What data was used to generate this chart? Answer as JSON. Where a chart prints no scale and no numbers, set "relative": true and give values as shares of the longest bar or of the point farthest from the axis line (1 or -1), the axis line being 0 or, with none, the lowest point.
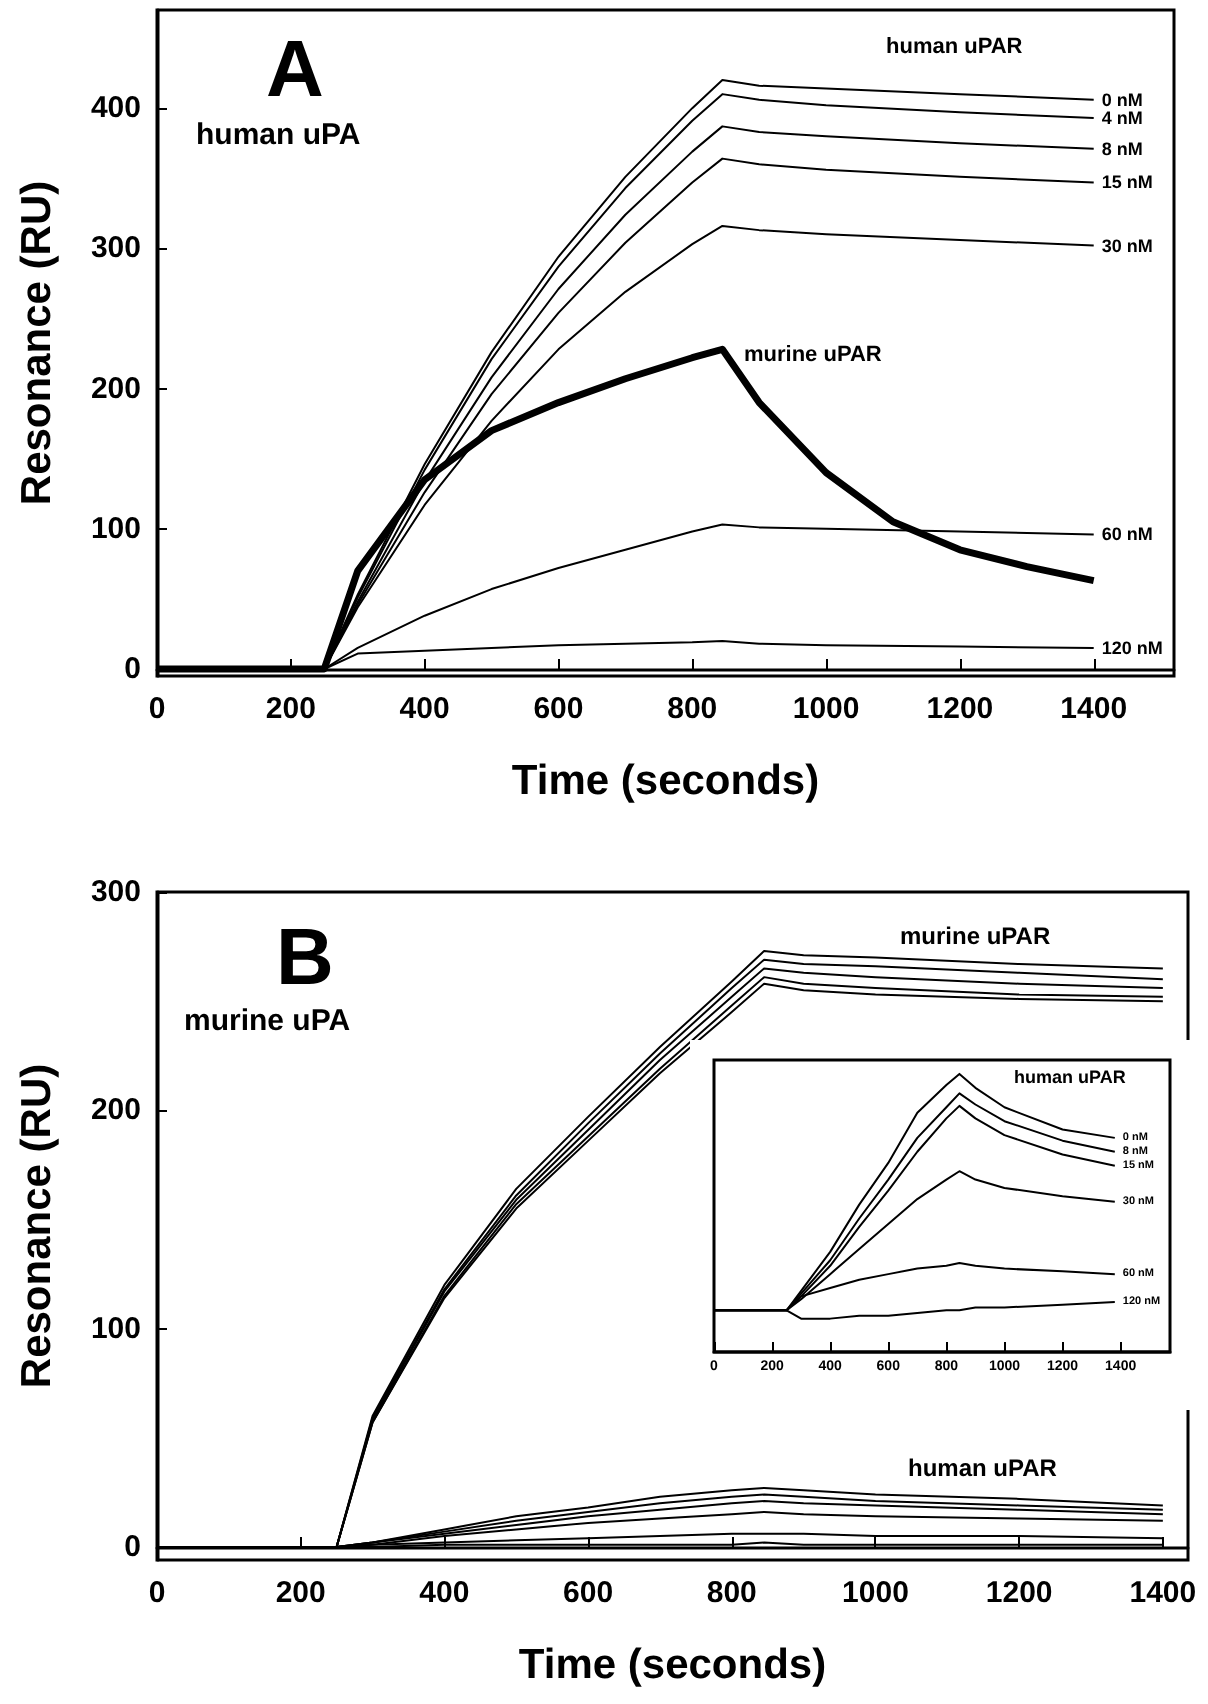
{
  "chart_data": [
    {
      "type": "line",
      "title": "A",
      "xlabel": "Time (seconds)",
      "ylabel": "Resonance (RU)",
      "xlim": [
        0,
        1520
      ],
      "ylim": [
        -5,
        470
      ],
      "xticks": [
        0,
        200,
        400,
        600,
        800,
        1000,
        1200,
        1400
      ],
      "yticks": [
        0,
        100,
        200,
        300,
        400
      ],
      "annotations": [
        "human uPA",
        "human uPAR",
        "murine uPAR"
      ],
      "x": [
        0,
        250,
        300,
        400,
        500,
        600,
        700,
        800,
        845,
        900,
        1000,
        1200,
        1400
      ],
      "series": [
        {
          "name": "0 nM",
          "color": "#000000",
          "values": [
            0,
            0,
            53,
            146,
            226,
            294,
            351,
            400,
            420,
            416,
            414,
            410,
            406
          ]
        },
        {
          "name": "4 nM",
          "color": "#000000",
          "values": [
            0,
            0,
            51,
            142,
            221,
            287,
            343,
            391,
            410,
            406,
            402,
            397,
            393
          ]
        },
        {
          "name": "8 nM",
          "color": "#000000",
          "values": [
            0,
            0,
            48,
            134,
            208,
            271,
            324,
            369,
            387,
            383,
            380,
            375,
            371
          ]
        },
        {
          "name": "15 nM",
          "color": "#000000",
          "values": [
            0,
            0,
            46,
            126,
            196,
            254,
            304,
            347,
            364,
            360,
            356,
            351,
            347
          ]
        },
        {
          "name": "30 nM",
          "color": "#000000",
          "values": [
            0,
            0,
            44,
            117,
            177,
            228,
            269,
            303,
            316,
            313,
            310,
            306,
            302
          ]
        },
        {
          "name": "60 nM",
          "color": "#000000",
          "values": [
            0,
            0,
            15,
            38,
            57,
            72,
            85,
            98,
            103,
            101,
            100,
            98,
            96
          ]
        },
        {
          "name": "120 nM",
          "color": "#000000",
          "values": [
            0,
            0,
            11,
            13,
            15,
            17,
            18,
            19,
            20,
            18,
            17,
            16,
            15
          ]
        },
        {
          "color": "#000000",
          "x": [
            0,
            250,
            300,
            400,
            500,
            600,
            700,
            800,
            845,
            900,
            1000,
            1100,
            1200,
            1300,
            1400
          ],
          "values": [
            0,
            0,
            70,
            135,
            170,
            190,
            207,
            222,
            228,
            190,
            140,
            105,
            85,
            73,
            63
          ]
        }
      ]
    },
    {
      "type": "line",
      "title": "B",
      "xlabel": "Time (seconds)",
      "ylabel": "Resonance (RU)",
      "xlim": [
        0,
        1435
      ],
      "ylim": [
        -6,
        300
      ],
      "xticks": [
        0,
        200,
        400,
        600,
        800,
        1000,
        1200,
        1400
      ],
      "yticks": [
        0,
        100,
        200,
        300
      ],
      "annotations": [
        "murine uPA",
        "murine uPAR",
        "human uPAR"
      ],
      "x": [
        0,
        250,
        300,
        400,
        500,
        600,
        700,
        800,
        845,
        900,
        1000,
        1200,
        1400
      ],
      "series": [
        {
          "color": "#000000",
          "values": [
            0,
            0,
            60,
            120,
            164,
            197,
            229,
            259,
            273,
            271,
            270,
            267,
            265
          ]
        },
        {
          "color": "#000000",
          "values": [
            0,
            0,
            59,
            118,
            161,
            194,
            226,
            256,
            269,
            267,
            266,
            263,
            260
          ]
        },
        {
          "color": "#000000",
          "values": [
            0,
            0,
            58,
            117,
            159,
            191,
            223,
            252,
            265,
            263,
            261,
            258,
            256
          ]
        },
        {
          "color": "#000000",
          "values": [
            0,
            0,
            57,
            115,
            157,
            188,
            219,
            248,
            261,
            258,
            256,
            253,
            252
          ]
        },
        {
          "color": "#000000",
          "values": [
            0,
            0,
            57,
            114,
            155,
            186,
            217,
            245,
            258,
            255,
            253,
            251,
            250
          ]
        },
        {
          "color": "#000000",
          "values": [
            0,
            0,
            2,
            8,
            14,
            18,
            23,
            26,
            27,
            26,
            24,
            22,
            19
          ]
        },
        {
          "color": "#000000",
          "values": [
            0,
            0,
            2,
            7,
            12,
            16,
            20,
            23,
            24,
            23,
            21,
            19,
            17
          ]
        },
        {
          "color": "#000000",
          "values": [
            0,
            0,
            2,
            6,
            10,
            14,
            17,
            20,
            21,
            20,
            19,
            17,
            15
          ]
        },
        {
          "color": "#000000",
          "values": [
            0,
            0,
            1,
            5,
            8,
            11,
            13,
            15,
            16,
            15,
            14,
            13,
            12
          ]
        },
        {
          "color": "#000000",
          "values": [
            0,
            0,
            1,
            2,
            3,
            4,
            5,
            6,
            6,
            6,
            5,
            5,
            4
          ]
        },
        {
          "color": "#000000",
          "values": [
            0,
            0,
            0,
            1,
            1,
            1,
            1,
            1,
            2,
            1,
            1,
            1,
            1
          ]
        }
      ]
    },
    {
      "type": "line",
      "relative": true,
      "tick_labels": "x",
      "xlim": [
        0,
        1570
      ],
      "xticks": [
        0,
        200,
        400,
        600,
        800,
        1000,
        1200,
        1400
      ],
      "annotations": [
        "human uPAR"
      ],
      "x": [
        0,
        250,
        300,
        400,
        500,
        600,
        700,
        800,
        845,
        900,
        1000,
        1200,
        1380
      ],
      "series": [
        {
          "name": "0 nM",
          "color": "#000000",
          "values": [
            0.15,
            0.15,
            0.22,
            0.36,
            0.53,
            0.68,
            0.86,
            0.96,
            1.0,
            0.95,
            0.88,
            0.8,
            0.77
          ]
        },
        {
          "name": "8 nM",
          "color": "#000000",
          "values": [
            0.15,
            0.15,
            0.21,
            0.33,
            0.48,
            0.62,
            0.77,
            0.88,
            0.93,
            0.89,
            0.83,
            0.76,
            0.72
          ]
        },
        {
          "name": "15 nM",
          "color": "#000000",
          "values": [
            0.15,
            0.15,
            0.2,
            0.31,
            0.45,
            0.58,
            0.72,
            0.84,
            0.885,
            0.84,
            0.78,
            0.71,
            0.67
          ]
        },
        {
          "name": "30 nM",
          "color": "#000000",
          "values": [
            0.15,
            0.15,
            0.19,
            0.28,
            0.37,
            0.46,
            0.55,
            0.62,
            0.65,
            0.62,
            0.59,
            0.56,
            0.54
          ]
        },
        {
          "name": "60 nM",
          "color": "#000000",
          "values": [
            0.15,
            0.15,
            0.2,
            0.23,
            0.26,
            0.28,
            0.3,
            0.31,
            0.32,
            0.31,
            0.3,
            0.29,
            0.28
          ]
        },
        {
          "name": "120 nM",
          "color": "#000000",
          "values": [
            0.15,
            0.15,
            0.12,
            0.12,
            0.13,
            0.13,
            0.14,
            0.15,
            0.15,
            0.16,
            0.16,
            0.17,
            0.18
          ]
        }
      ]
    }
  ]
}
